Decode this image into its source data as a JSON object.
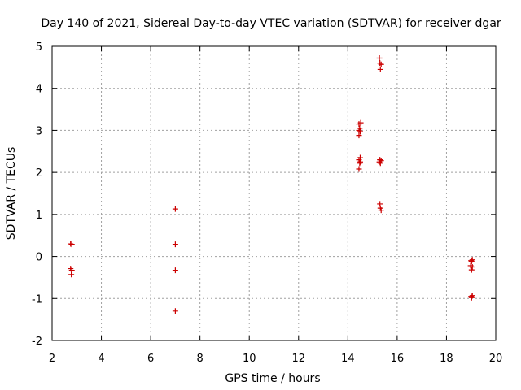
{
  "chart_data": {
    "type": "scatter",
    "title": "Day 140 of 2021, Sidereal Day-to-day VTEC variation (SDTVAR) for receiver dgar",
    "xlabel": "GPS time / hours",
    "ylabel": "SDTVAR / TECUs",
    "xlim": [
      2,
      20
    ],
    "ylim": [
      -2,
      5
    ],
    "xticks": [
      2,
      4,
      6,
      8,
      10,
      12,
      14,
      16,
      18,
      20
    ],
    "yticks": [
      -2,
      -1,
      0,
      1,
      2,
      3,
      4,
      5
    ],
    "xtick_labels": [
      "2",
      "4",
      "6",
      "8",
      "10",
      "12",
      "14",
      "16",
      "18",
      "20"
    ],
    "ytick_labels": [
      "-2",
      "-1",
      "0",
      "1",
      "2",
      "3",
      "4",
      "5"
    ],
    "grid": true,
    "marker": "+",
    "color": "#cc0000",
    "points": [
      {
        "x": 2.75,
        "y": 0.3
      },
      {
        "x": 2.8,
        "y": 0.29
      },
      {
        "x": 2.75,
        "y": -0.29
      },
      {
        "x": 2.8,
        "y": -0.33
      },
      {
        "x": 2.78,
        "y": -0.43
      },
      {
        "x": 7.0,
        "y": 1.13
      },
      {
        "x": 7.0,
        "y": 0.29
      },
      {
        "x": 7.0,
        "y": -0.33
      },
      {
        "x": 7.0,
        "y": -1.3
      },
      {
        "x": 14.45,
        "y": 3.15
      },
      {
        "x": 14.52,
        "y": 3.18
      },
      {
        "x": 14.48,
        "y": 3.05
      },
      {
        "x": 14.45,
        "y": 3.0
      },
      {
        "x": 14.5,
        "y": 2.97
      },
      {
        "x": 14.45,
        "y": 2.88
      },
      {
        "x": 14.5,
        "y": 2.35
      },
      {
        "x": 14.45,
        "y": 2.3
      },
      {
        "x": 14.5,
        "y": 2.25
      },
      {
        "x": 14.48,
        "y": 2.22
      },
      {
        "x": 14.45,
        "y": 2.08
      },
      {
        "x": 15.28,
        "y": 4.72
      },
      {
        "x": 15.3,
        "y": 4.6
      },
      {
        "x": 15.35,
        "y": 4.57
      },
      {
        "x": 15.32,
        "y": 4.45
      },
      {
        "x": 15.3,
        "y": 2.3
      },
      {
        "x": 15.35,
        "y": 2.28
      },
      {
        "x": 15.28,
        "y": 2.25
      },
      {
        "x": 15.32,
        "y": 2.22
      },
      {
        "x": 15.3,
        "y": 1.25
      },
      {
        "x": 15.32,
        "y": 1.15
      },
      {
        "x": 15.35,
        "y": 1.1
      },
      {
        "x": 19.05,
        "y": -0.08
      },
      {
        "x": 19.0,
        "y": -0.1
      },
      {
        "x": 19.02,
        "y": -0.12
      },
      {
        "x": 18.98,
        "y": -0.22
      },
      {
        "x": 19.05,
        "y": -0.25
      },
      {
        "x": 19.02,
        "y": -0.32
      },
      {
        "x": 19.0,
        "y": -0.95
      },
      {
        "x": 19.05,
        "y": -0.93
      },
      {
        "x": 19.02,
        "y": -0.98
      }
    ]
  }
}
